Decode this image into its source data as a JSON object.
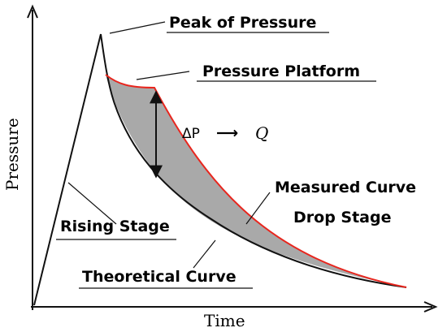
{
  "axes": {
    "x_label": "Time",
    "y_label": "Pressure"
  },
  "annotations": {
    "peak": "Peak of Pressure",
    "platform": "Pressure Platform",
    "delta": "ΔP",
    "arrow": "⟶",
    "flow": "Q",
    "measured": "Measured Curve",
    "drop": "Drop Stage",
    "rising": "Rising Stage",
    "theoretical": "Theoretical Curve"
  },
  "colors": {
    "measured_curve": "#e8261e",
    "shaded_region": "#a9a9a9",
    "lines": "#111111"
  }
}
